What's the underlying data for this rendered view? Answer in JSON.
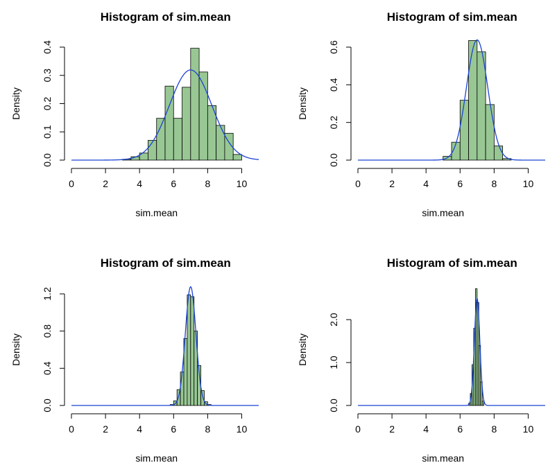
{
  "colors": {
    "bar_fill": "#98c794",
    "curve": "#1a43d4"
  },
  "chart_data": [
    {
      "type": "histogram",
      "title": "Histogram of sim.mean",
      "xlabel": "sim.mean",
      "ylabel": "Density",
      "xlim": [
        0,
        11
      ],
      "ylim": [
        0,
        0.4
      ],
      "xticks": [
        0,
        2,
        4,
        6,
        8,
        10
      ],
      "yticks": [
        0.0,
        0.1,
        0.2,
        0.3,
        0.4
      ],
      "ytick_labels": [
        "0.0",
        "0.1",
        "0.2",
        "0.3",
        "0.4"
      ],
      "bins": [
        3.0,
        3.5,
        4.0,
        4.5,
        5.0,
        5.5,
        6.0,
        6.5,
        7.0,
        7.5,
        8.0,
        8.5,
        9.0,
        9.5,
        10.0
      ],
      "values": [
        0.003,
        0.012,
        0.025,
        0.07,
        0.148,
        0.262,
        0.148,
        0.258,
        0.396,
        0.312,
        0.193,
        0.123,
        0.095,
        0.02
      ],
      "density_curve": {
        "distribution": "normal",
        "mean": 7.0,
        "sd": 1.25
      }
    },
    {
      "type": "histogram",
      "title": "Histogram of sim.mean",
      "xlabel": "sim.mean",
      "ylabel": "Density",
      "xlim": [
        0,
        11
      ],
      "ylim": [
        0,
        0.6
      ],
      "xticks": [
        0,
        2,
        4,
        6,
        8,
        10
      ],
      "yticks": [
        0.0,
        0.2,
        0.4,
        0.6
      ],
      "ytick_labels": [
        "0.0",
        "0.2",
        "0.4",
        "0.6"
      ],
      "bins": [
        5.0,
        5.5,
        6.0,
        6.5,
        7.0,
        7.5,
        8.0,
        8.5,
        9.0
      ],
      "values": [
        0.02,
        0.095,
        0.318,
        0.635,
        0.575,
        0.295,
        0.075,
        0.008
      ],
      "density_curve": {
        "distribution": "normal",
        "mean": 7.0,
        "sd": 0.625
      }
    },
    {
      "type": "histogram",
      "title": "Histogram of sim.mean",
      "xlabel": "sim.mean",
      "ylabel": "Density",
      "xlim": [
        0,
        11
      ],
      "ylim": [
        0,
        1.2
      ],
      "xticks": [
        0,
        2,
        4,
        6,
        8,
        10
      ],
      "yticks": [
        0.0,
        0.4,
        0.8,
        1.2
      ],
      "ytick_labels": [
        "0.0",
        "0.4",
        "0.8",
        "1.2"
      ],
      "bins": [
        5.8,
        6.0,
        6.2,
        6.4,
        6.6,
        6.8,
        7.0,
        7.2,
        7.4,
        7.6,
        7.8,
        8.0,
        8.2
      ],
      "values": [
        0.01,
        0.05,
        0.17,
        0.36,
        0.72,
        1.19,
        1.17,
        0.8,
        0.43,
        0.16,
        0.04,
        0.01
      ],
      "density_curve": {
        "distribution": "normal",
        "mean": 7.0,
        "sd": 0.3125
      }
    },
    {
      "type": "histogram",
      "title": "Histogram of sim.mean",
      "xlabel": "sim.mean",
      "ylabel": "Density",
      "xlim": [
        0,
        11
      ],
      "ylim": [
        0,
        2.6
      ],
      "xticks": [
        0,
        2,
        4,
        6,
        8,
        10
      ],
      "yticks": [
        0.0,
        1.0,
        2.0
      ],
      "ytick_labels": [
        "0.0",
        "1.0",
        "2.0"
      ],
      "bins": [
        6.5,
        6.6,
        6.7,
        6.8,
        6.9,
        7.0,
        7.1,
        7.2,
        7.3,
        7.4
      ],
      "values": [
        0.05,
        0.28,
        0.95,
        1.8,
        2.72,
        2.4,
        1.4,
        0.55,
        0.1
      ],
      "density_curve": {
        "distribution": "normal",
        "mean": 7.0,
        "sd": 0.16
      }
    }
  ]
}
